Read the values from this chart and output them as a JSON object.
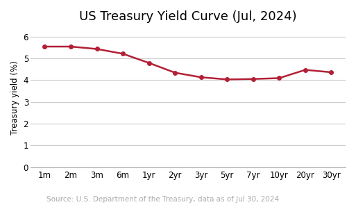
{
  "title": "US Treasury Yield Curve (Jul, 2024)",
  "ylabel": "Treasury yield (%)",
  "source_text": "Source: U.S. Department of the Treasury, data as of Jul 30, 2024",
  "categories": [
    "1m",
    "2m",
    "3m",
    "6m",
    "1yr",
    "2yr",
    "3yr",
    "5yr",
    "7yr",
    "10yr",
    "20yr",
    "30yr"
  ],
  "values": [
    5.54,
    5.54,
    5.43,
    5.21,
    4.79,
    4.34,
    4.13,
    4.03,
    4.05,
    4.09,
    4.47,
    4.36
  ],
  "line_color": "#b22035",
  "marker": "o",
  "marker_size": 4,
  "linewidth": 1.8,
  "ylim": [
    0,
    6.4
  ],
  "yticks": [
    0,
    1,
    2,
    3,
    4,
    5,
    6
  ],
  "grid_color": "#cccccc",
  "background_color": "#ffffff",
  "title_fontsize": 13,
  "label_fontsize": 8.5,
  "tick_fontsize": 8.5,
  "source_fontsize": 7.5
}
